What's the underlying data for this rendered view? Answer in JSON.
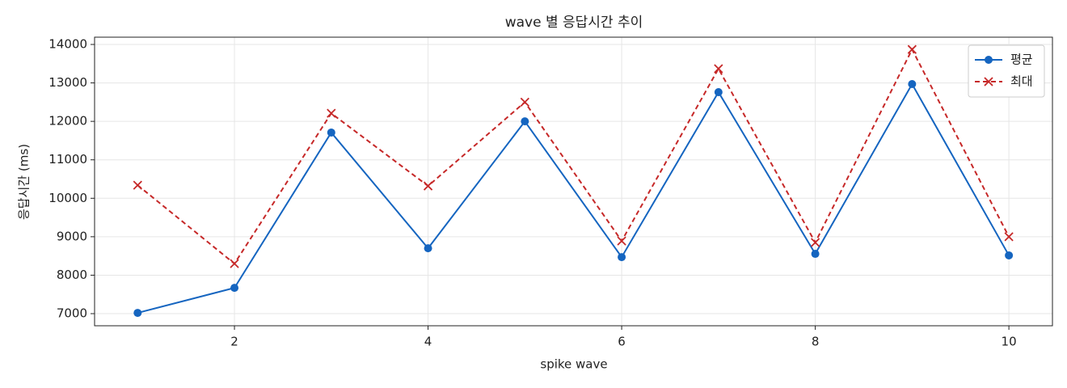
{
  "chart_data": {
    "type": "line",
    "title": "wave 별 응답시간 추이",
    "xlabel": "spike wave",
    "ylabel": "응답시간 (ms)",
    "x": [
      1,
      2,
      3,
      4,
      5,
      6,
      7,
      8,
      9,
      10
    ],
    "series": [
      {
        "name": "평균",
        "color": "#1565c0",
        "marker": "circle",
        "dash": "solid",
        "values": [
          7020,
          7670,
          11710,
          8700,
          12000,
          8470,
          12760,
          8555,
          12970,
          8515
        ]
      },
      {
        "name": "최대",
        "color": "#c62828",
        "marker": "x",
        "dash": "dashed",
        "values": [
          10340,
          8300,
          12210,
          10320,
          12500,
          8890,
          13370,
          8850,
          13870,
          9000
        ]
      }
    ],
    "xlim": [
      0.555,
      10.45
    ],
    "xticks": [
      2,
      4,
      6,
      8,
      10
    ],
    "ylim": [
      6685,
      14189
    ],
    "yticks": [
      7000,
      8000,
      9000,
      10000,
      11000,
      12000,
      13000,
      14000
    ],
    "grid": true,
    "legend": "upper right"
  }
}
